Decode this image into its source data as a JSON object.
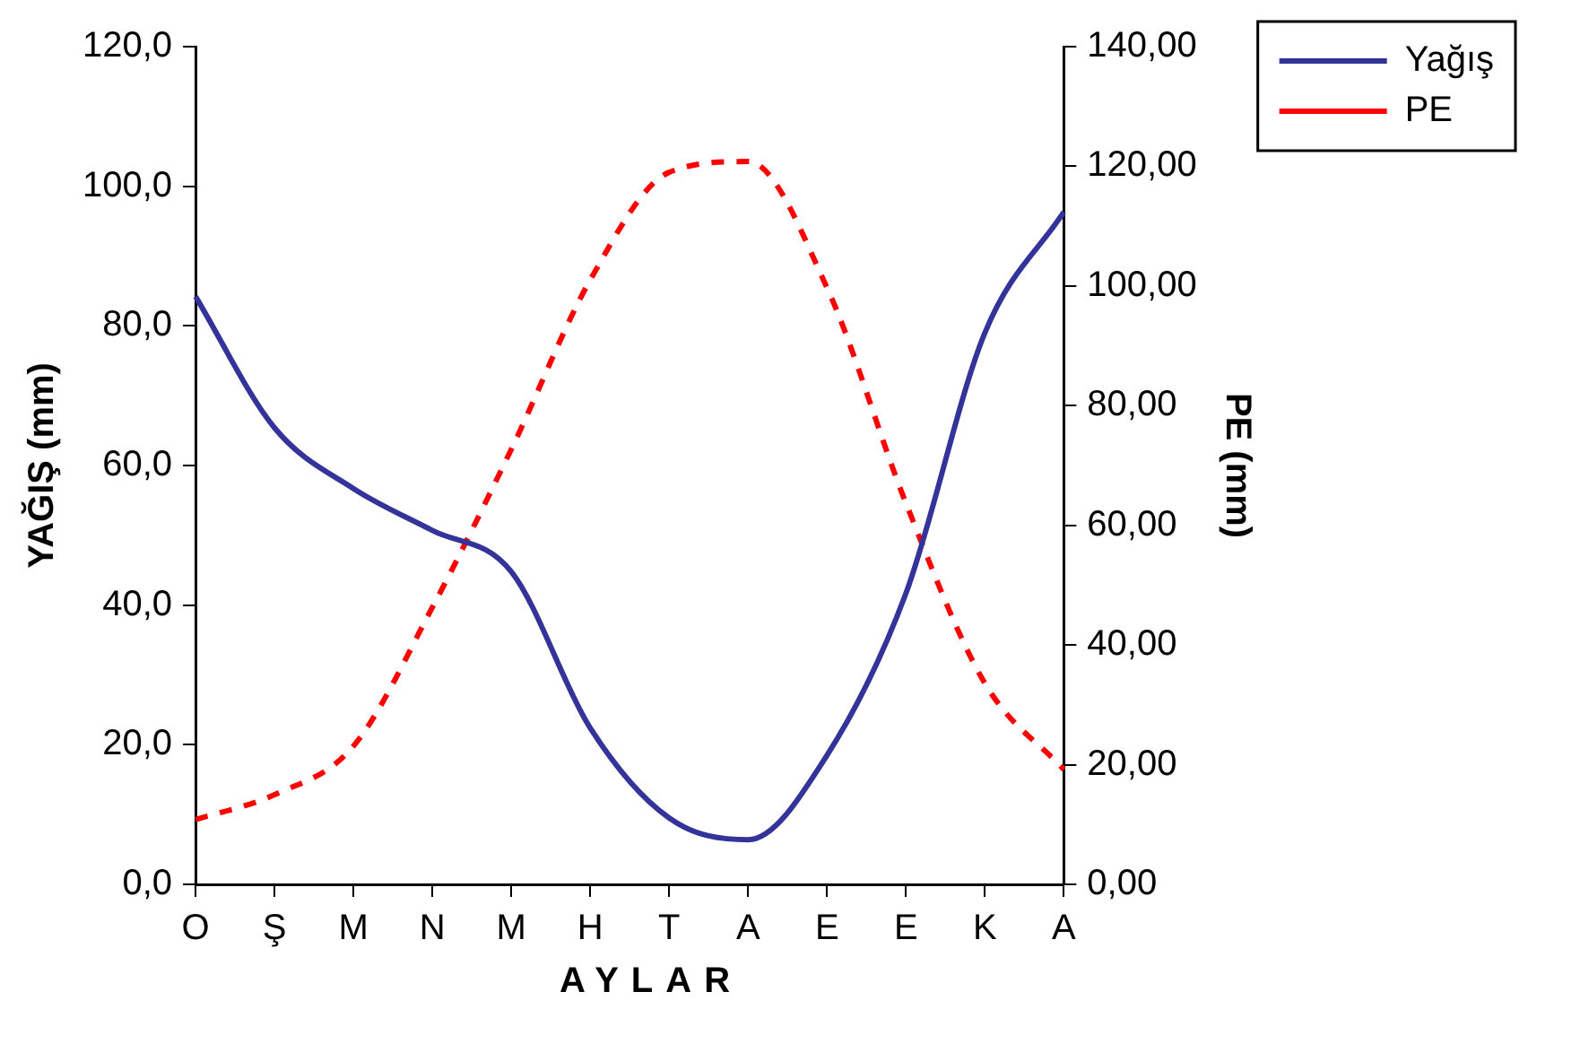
{
  "chart_data": {
    "type": "line",
    "xlabel": "AYLAR",
    "ylabel": "YAĞIŞ (mm)",
    "y2label": "PE (mm)",
    "categories": [
      "O",
      "Ş",
      "M",
      "N",
      "M",
      "H",
      "T",
      "A",
      "E",
      "E",
      "K",
      "A"
    ],
    "series": [
      {
        "name": "Yağış",
        "color": "#333399",
        "line_style": "solid",
        "values": [
          84.2,
          65.4,
          56.7,
          50.7,
          44.8,
          22.4,
          9.5,
          6.4,
          18.5,
          41.7,
          79.0,
          96.3
        ]
      },
      {
        "name": "PE",
        "color": "#ff0000",
        "line_style": "dashed",
        "axis": "y2",
        "values": [
          10.8,
          15.0,
          23.1,
          46.3,
          72.7,
          101.0,
          119.0,
          120.8,
          99.7,
          63.7,
          33.6,
          19.2
        ]
      }
    ],
    "ylim": [
      0,
      120
    ],
    "yticks": [
      {
        "value": 0,
        "label": "0,0"
      },
      {
        "value": 20,
        "label": "20,0"
      },
      {
        "value": 40,
        "label": "40,0"
      },
      {
        "value": 60,
        "label": "60,0"
      },
      {
        "value": 80,
        "label": "80,0"
      },
      {
        "value": 100,
        "label": "100,0"
      },
      {
        "value": 120,
        "label": "120,0"
      }
    ],
    "y2lim": [
      0,
      140
    ],
    "y2ticks": [
      {
        "value": 0,
        "label": "0,00"
      },
      {
        "value": 20,
        "label": "20,00"
      },
      {
        "value": 40,
        "label": "40,00"
      },
      {
        "value": 60,
        "label": "60,00"
      },
      {
        "value": 80,
        "label": "80,00"
      },
      {
        "value": 100,
        "label": "100,00"
      },
      {
        "value": 120,
        "label": "120,00"
      },
      {
        "value": 140,
        "label": "140,00"
      }
    ],
    "grid": false,
    "legend": "top right",
    "marker": "none"
  }
}
